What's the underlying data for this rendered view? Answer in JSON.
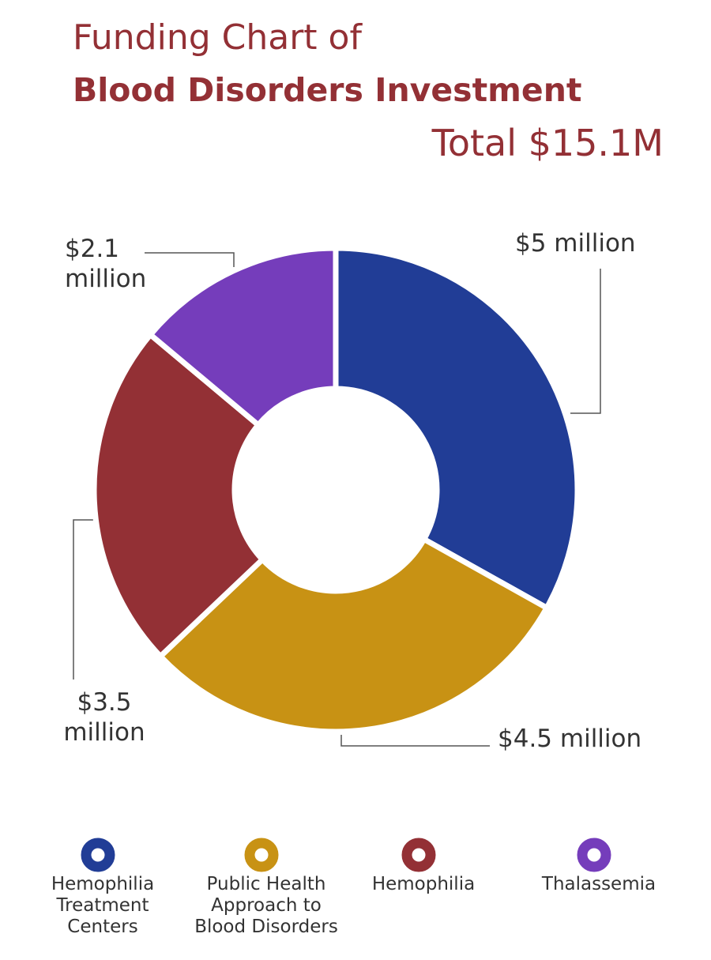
{
  "chart_data": {
    "type": "donut",
    "title": "Funding Chart of",
    "subtitle": "Blood Disorders Investment",
    "total_label": "Total $15.1M",
    "categories": [
      "Hemophilia Treatment Centers",
      "Public Health Approach to Blood Disorders",
      "Hemophilia",
      "Thalassemia"
    ],
    "values": [
      5,
      4.5,
      3.5,
      2.1
    ],
    "value_labels": [
      "$5 million",
      "$4.5 million",
      "$3.5 million",
      "$2.1 million"
    ],
    "colors": [
      "#213d96",
      "#c89214",
      "#933035",
      "#753dbb"
    ]
  }
}
